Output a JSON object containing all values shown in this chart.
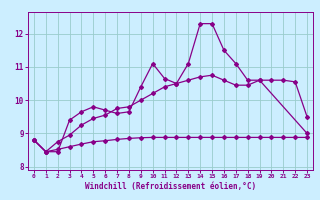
{
  "xlabel": "Windchill (Refroidissement éolien,°C)",
  "bg_color": "#cceeff",
  "line_color": "#880088",
  "grid_color": "#99cccc",
  "x_values": [
    0,
    1,
    2,
    3,
    4,
    5,
    6,
    7,
    8,
    9,
    10,
    11,
    12,
    13,
    14,
    15,
    16,
    17,
    18,
    19,
    20,
    21,
    22,
    23
  ],
  "line1": [
    8.8,
    8.45,
    8.45,
    9.4,
    9.65,
    9.8,
    9.7,
    9.6,
    9.65,
    10.4,
    11.1,
    10.65,
    10.5,
    11.1,
    12.3,
    12.3,
    11.5,
    11.1,
    10.6,
    10.6,
    null,
    null,
    null,
    9.0
  ],
  "line2": [
    8.8,
    8.45,
    8.75,
    8.95,
    9.25,
    9.45,
    9.55,
    9.75,
    9.8,
    10.0,
    10.2,
    10.4,
    10.5,
    10.6,
    10.7,
    10.75,
    10.6,
    10.45,
    10.45,
    10.6,
    10.6,
    10.6,
    10.55,
    9.5
  ],
  "line3": [
    8.8,
    8.45,
    8.52,
    8.6,
    8.68,
    8.75,
    8.78,
    8.82,
    8.85,
    8.87,
    8.88,
    8.88,
    8.88,
    8.88,
    8.88,
    8.88,
    8.88,
    8.88,
    8.88,
    8.88,
    8.88,
    8.88,
    8.88,
    8.88
  ],
  "ylim": [
    7.9,
    12.65
  ],
  "xlim": [
    -0.5,
    23.5
  ],
  "yticks": [
    8,
    9,
    10,
    11,
    12
  ],
  "xticks": [
    0,
    1,
    2,
    3,
    4,
    5,
    6,
    7,
    8,
    9,
    10,
    11,
    12,
    13,
    14,
    15,
    16,
    17,
    18,
    19,
    20,
    21,
    22,
    23
  ]
}
